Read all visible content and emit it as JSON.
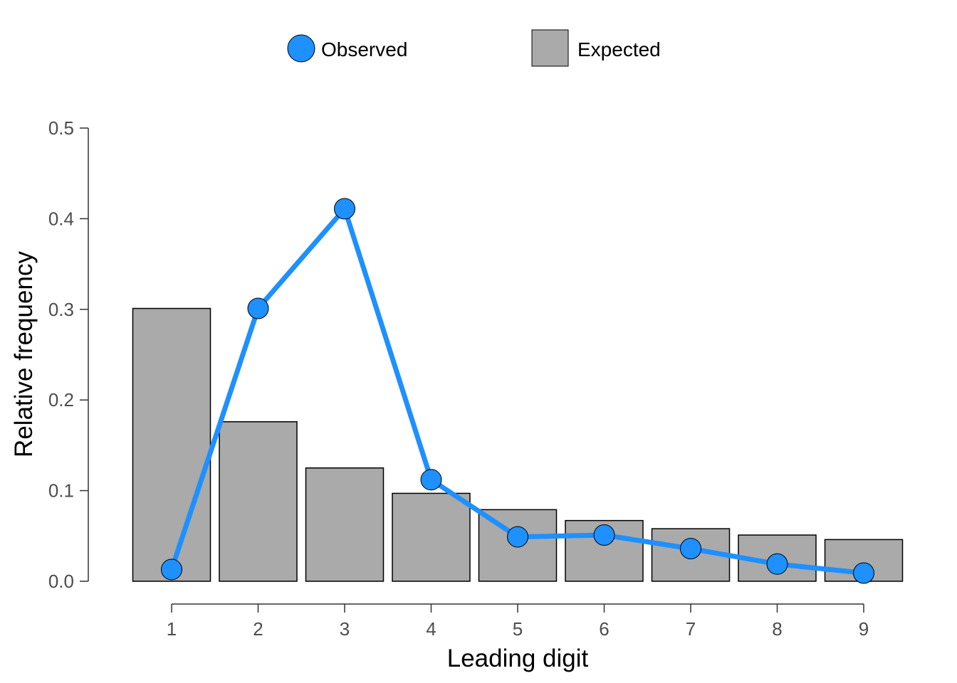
{
  "chart_data": {
    "type": "bar",
    "xlabel": "Leading digit",
    "ylabel": "Relative frequency",
    "categories": [
      "1",
      "2",
      "3",
      "4",
      "5",
      "6",
      "7",
      "8",
      "9"
    ],
    "ylim": [
      0,
      0.5
    ],
    "yticks": [
      "0.0",
      "0.1",
      "0.2",
      "0.3",
      "0.4",
      "0.5"
    ],
    "series": [
      {
        "name": "Expected",
        "type": "bar",
        "color": "#aaaaaa",
        "values": [
          0.301,
          0.176,
          0.125,
          0.097,
          0.079,
          0.067,
          0.058,
          0.051,
          0.046
        ]
      },
      {
        "name": "Observed",
        "type": "line",
        "color": "#1e90ff",
        "values": [
          0.013,
          0.301,
          0.411,
          0.112,
          0.049,
          0.051,
          0.036,
          0.019,
          0.009
        ]
      }
    ],
    "legend": {
      "position": "top",
      "entries": [
        "Observed",
        "Expected"
      ]
    },
    "grid": false
  }
}
